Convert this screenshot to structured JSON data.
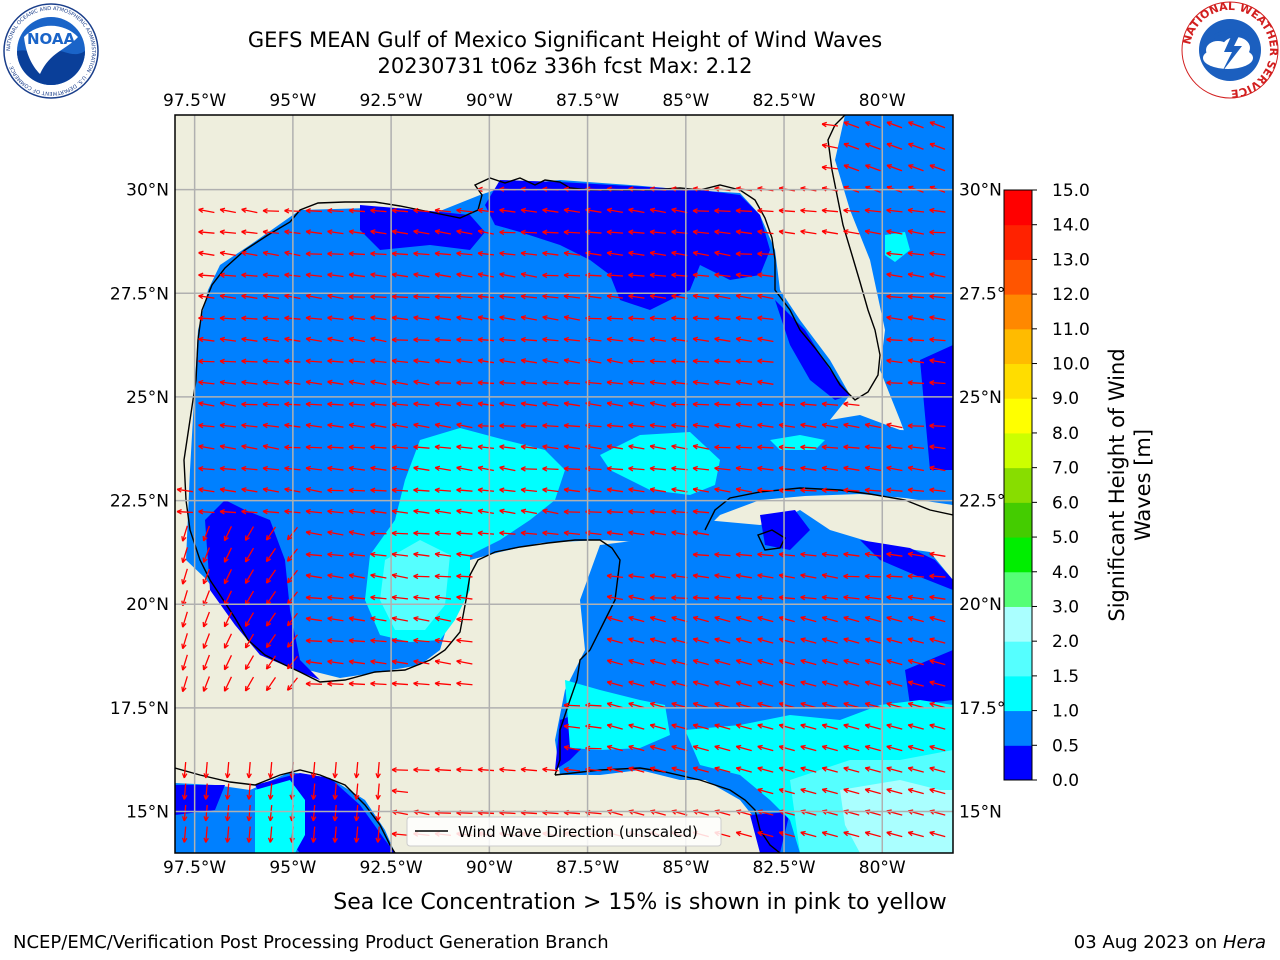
{
  "header": {
    "title_line1": "GEFS MEAN Gulf of Mexico Significant Height of Wind Waves",
    "title_line2": "20230731 t06z 336h fcst   Max: 2.12"
  },
  "logos": {
    "noaa": {
      "text": "NOAA",
      "ring_text": "NATIONAL OCEANIC AND ATMOSPHERIC ADMINISTRATION · U.S. DEPARTMENT OF COMMERCE ·"
    },
    "nws": {
      "ring_text": "NATIONAL WEATHER SERVICE"
    }
  },
  "chart_data": {
    "type": "heatmap",
    "title": "GEFS MEAN Gulf of Mexico Significant Height of Wind Waves",
    "subtitle": "20230731 t06z 336h fcst   Max: 2.12",
    "x_ticks": [
      "97.5°W",
      "95°W",
      "92.5°W",
      "90°W",
      "87.5°W",
      "85°W",
      "82.5°W",
      "80°W"
    ],
    "x_tick_values": [
      -97.5,
      -95,
      -92.5,
      -90,
      -87.5,
      -85,
      -82.5,
      -80
    ],
    "y_ticks": [
      "30°N",
      "27.5°N",
      "25°N",
      "22.5°N",
      "20°N",
      "17.5°N",
      "15°N"
    ],
    "y_tick_values": [
      30,
      27.5,
      25,
      22.5,
      20,
      17.5,
      15
    ],
    "xlim": [
      -98,
      -78.2
    ],
    "ylim": [
      14,
      31.8
    ],
    "grid": true,
    "legend": {
      "label": "Wind Wave Direction (unscaled)",
      "placement": "bottom"
    },
    "colorbar": {
      "label": "Significant Height of Wind Waves [m]",
      "label_line1": "Significant Height of Wind",
      "label_line2": "Waves [m]",
      "tick_labels": [
        "0.0",
        "0.5",
        "1.0",
        "1.5",
        "2.0",
        "3.0",
        "4.0",
        "5.0",
        "6.0",
        "7.0",
        "8.0",
        "9.0",
        "10.0",
        "11.0",
        "12.0",
        "13.0",
        "14.0",
        "15.0"
      ],
      "levels": [
        0,
        0.5,
        1.0,
        1.5,
        2.0,
        3.0,
        4.0,
        5.0,
        6.0,
        7.0,
        8.0,
        9.0,
        10.0,
        11.0,
        12.0,
        13.0,
        14.0,
        15.0
      ],
      "colors": [
        "#0000ff",
        "#0080ff",
        "#00ffff",
        "#55ffff",
        "#aaffff",
        "#55ff77",
        "#00ee00",
        "#44cc00",
        "#88dd00",
        "#ccff00",
        "#ffff00",
        "#ffdd00",
        "#ffbb00",
        "#ff8800",
        "#ff5500",
        "#ff2200",
        "#ff0000"
      ]
    },
    "land_color": "#eeeedd",
    "arrow_color": "#ff0000",
    "max_value": 2.12
  },
  "footer": {
    "note": "Sea Ice Concentration > 15% is shown in pink to yellow",
    "credit": "NCEP/EMC/Verification Post Processing Product Generation Branch",
    "date_prefix": "03 Aug 2023 on ",
    "machine": "Hera"
  }
}
